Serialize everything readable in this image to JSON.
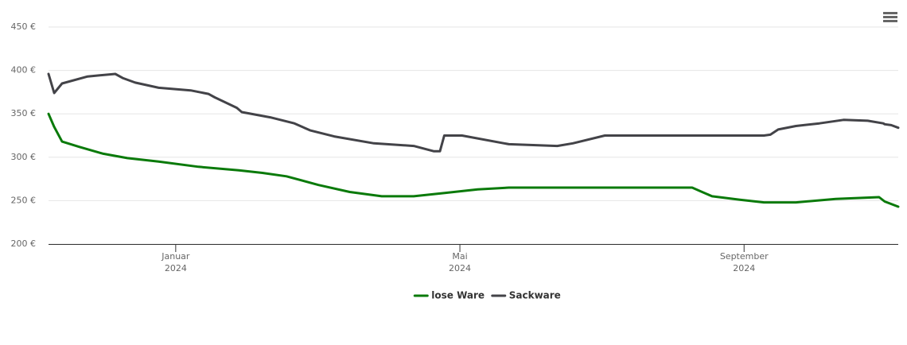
{
  "chart_data": {
    "type": "line",
    "xlim": [
      -1.79,
      10.17
    ],
    "ylim": [
      200,
      450
    ],
    "yticks": [
      {
        "value": 200,
        "label": "200 €"
      },
      {
        "value": 250,
        "label": "250 €"
      },
      {
        "value": 300,
        "label": "300 €"
      },
      {
        "value": 350,
        "label": "350 €"
      },
      {
        "value": 400,
        "label": "400 €"
      },
      {
        "value": 450,
        "label": "450 €"
      }
    ],
    "xticks": [
      {
        "value": 0,
        "label": [
          "Januar",
          "2024"
        ]
      },
      {
        "value": 4,
        "label": [
          "Mai",
          "2024"
        ]
      },
      {
        "value": 8,
        "label": [
          "September",
          "2024"
        ]
      }
    ],
    "grid": true,
    "legend": "bottom",
    "series": [
      {
        "name": "lose Ware",
        "color": "#0a7a0a",
        "x": [
          -1.79,
          -1.71,
          -1.6,
          -1.36,
          -1.02,
          -0.68,
          -0.24,
          0.32,
          0.89,
          1.22,
          1.56,
          2.01,
          2.45,
          2.9,
          3.35,
          3.8,
          4.25,
          4.69,
          7.27,
          7.38,
          7.55,
          7.94,
          8.28,
          8.73,
          9.29,
          9.9,
          9.98,
          10.17
        ],
        "values": [
          350,
          335,
          318,
          312,
          304,
          299,
          295,
          289,
          285,
          282,
          278,
          268,
          260,
          255,
          255,
          259,
          263,
          265,
          265,
          261,
          255,
          251,
          248,
          248,
          252,
          254,
          249,
          243
        ]
      },
      {
        "name": "Sackware",
        "color": "#434348",
        "x": [
          -1.79,
          -1.71,
          -1.6,
          -1.24,
          -0.85,
          -0.74,
          -0.57,
          -0.24,
          0.21,
          0.46,
          0.55,
          0.86,
          0.93,
          1.33,
          1.67,
          1.89,
          2.23,
          2.79,
          3.35,
          3.63,
          3.72,
          3.78,
          4.03,
          4.69,
          5.37,
          5.59,
          6.04,
          8.28,
          8.37,
          8.48,
          8.73,
          9.06,
          9.4,
          9.74,
          9.96,
          9.98,
          10.07,
          10.17
        ],
        "values": [
          396,
          374,
          385,
          393,
          396,
          391,
          386,
          380,
          377,
          373,
          369,
          357,
          352,
          346,
          339,
          331,
          324,
          316,
          313,
          307,
          307,
          325,
          325,
          315,
          313,
          316,
          325,
          325,
          326,
          332,
          336,
          339,
          343,
          342,
          339,
          338,
          337,
          334
        ]
      }
    ]
  }
}
